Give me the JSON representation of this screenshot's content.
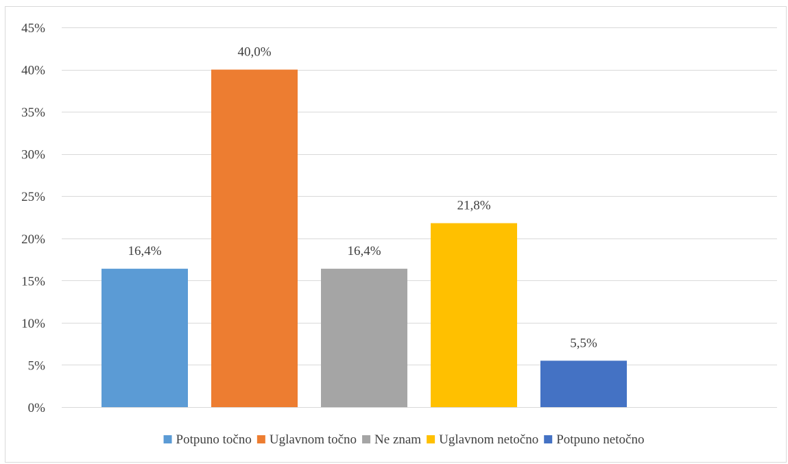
{
  "chart_data": {
    "type": "bar",
    "categories": [
      "Potpuno točno",
      "Uglavnom točno",
      "Ne znam",
      "Uglavnom netočno",
      "Potpuno netočno"
    ],
    "values": [
      16.4,
      40.0,
      16.4,
      21.8,
      5.5
    ],
    "data_labels": [
      "16,4%",
      "40,0%",
      "16,4%",
      "21,8%",
      "5,5%"
    ],
    "colors": [
      "#5b9bd5",
      "#ed7d31",
      "#a5a5a5",
      "#ffc000",
      "#4472c4"
    ],
    "yticks": [
      0,
      5,
      10,
      15,
      20,
      25,
      30,
      35,
      40,
      45
    ],
    "ytick_labels": [
      "0%",
      "5%",
      "10%",
      "15%",
      "20%",
      "25%",
      "30%",
      "35%",
      "40%",
      "45%"
    ],
    "ylim": [
      0,
      45
    ],
    "grid": true,
    "gridline_color": "#d9d9d9",
    "legend": {
      "position": "bottom",
      "entries": [
        "Potpuno točno",
        "Uglavnom točno",
        "Ne znam",
        "Uglavnom netočno",
        "Potpuno netočno"
      ]
    },
    "title": "",
    "xlabel": "",
    "ylabel": ""
  }
}
